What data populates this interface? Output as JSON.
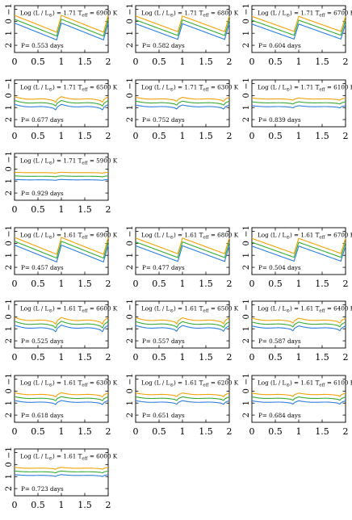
{
  "figure": {
    "color_orange": "#f0a30a",
    "color_green": "#3aa935",
    "color_blue": "#2f7fd8",
    "x_tick_labels": [
      "0",
      "0.5",
      "1",
      "1.5",
      "2"
    ],
    "y_tick_labels": [
      "−1",
      "0",
      "1",
      "2"
    ]
  },
  "chart_data": [
    {
      "type": "line",
      "label": "Log (L / L⊙) = 1.71 Teff = 6900 K",
      "period": "P= 0.553 days",
      "xlim": [
        0,
        2
      ],
      "ylim": [
        2.6,
        -1.3
      ],
      "shape": "saw",
      "amplitude": 1.4,
      "spread": 0.32
    },
    {
      "type": "line",
      "label": "Log (L / L⊙) = 1.71 Teff = 6800 K",
      "period": "P= 0.582 days",
      "xlim": [
        0,
        2
      ],
      "ylim": [
        2.6,
        -1.3
      ],
      "shape": "saw",
      "amplitude": 1.3,
      "spread": 0.32
    },
    {
      "type": "line",
      "label": "Log (L / L⊙) = 1.71 Teff = 6700 K",
      "period": "P= 0.604 days",
      "xlim": [
        0,
        2
      ],
      "ylim": [
        2.6,
        -1.3
      ],
      "shape": "saw",
      "amplitude": 1.25,
      "spread": 0.32
    },
    {
      "type": "line",
      "label": "Log (L / L⊙) = 1.71 Teff = 6500 K",
      "period": "P= 0.677 days",
      "xlim": [
        0,
        2
      ],
      "ylim": [
        2.6,
        -1.3
      ],
      "shape": "bump",
      "amplitude": 0.75,
      "spread": 0.32
    },
    {
      "type": "line",
      "label": "Log (L / L⊙) = 1.71 Teff = 6300 K",
      "period": "P= 0.752 days",
      "xlim": [
        0,
        2
      ],
      "ylim": [
        2.6,
        -1.3
      ],
      "shape": "bump",
      "amplitude": 0.55,
      "spread": 0.32
    },
    {
      "type": "line",
      "label": "Log (L / L⊙) = 1.71 Teff = 6100 K",
      "period": "P= 0.839 days",
      "xlim": [
        0,
        2
      ],
      "ylim": [
        2.6,
        -1.3
      ],
      "shape": "bump",
      "amplitude": 0.3,
      "spread": 0.32
    },
    {
      "type": "line",
      "label": "Log (L / L⊙) = 1.71 Teff = 5900 K",
      "period": "P= 0.929 days",
      "xlim": [
        0,
        2
      ],
      "ylim": [
        2.6,
        -1.3
      ],
      "shape": "bump",
      "amplitude": 0.12,
      "spread": 0.3
    },
    {
      "type": "line",
      "label": "Log (L / L⊙) = 1.61 Teff = 6900 K",
      "period": "P= 0.457 days",
      "xlim": [
        0,
        2
      ],
      "ylim": [
        2.6,
        -1.3
      ],
      "shape": "saw",
      "amplitude": 1.4,
      "spread": 0.32
    },
    {
      "type": "line",
      "label": "Log (L / L⊙) = 1.61 Teff = 6800 K",
      "period": "P= 0.477 days",
      "xlim": [
        0,
        2
      ],
      "ylim": [
        2.6,
        -1.3
      ],
      "shape": "saw",
      "amplitude": 1.3,
      "spread": 0.32
    },
    {
      "type": "line",
      "label": "Log (L / L⊙) = 1.61 Teff = 6700 K",
      "period": "P= 0.504 days",
      "xlim": [
        0,
        2
      ],
      "ylim": [
        2.6,
        -1.3
      ],
      "shape": "saw",
      "amplitude": 1.25,
      "spread": 0.32
    },
    {
      "type": "line",
      "label": "Log (L / L⊙) = 1.61 Teff = 6600 K",
      "period": "P= 0.525 days",
      "xlim": [
        0,
        2
      ],
      "ylim": [
        2.6,
        -1.3
      ],
      "shape": "bump",
      "amplitude": 0.9,
      "spread": 0.32
    },
    {
      "type": "line",
      "label": "Log (L / L⊙) = 1.61 Teff = 6500 K",
      "period": "P= 0.557 days",
      "xlim": [
        0,
        2
      ],
      "ylim": [
        2.6,
        -1.3
      ],
      "shape": "bump",
      "amplitude": 0.8,
      "spread": 0.32
    },
    {
      "type": "line",
      "label": "Log (L / L⊙) = 1.61 Teff = 6400 K",
      "period": "P= 0.587 days",
      "xlim": [
        0,
        2
      ],
      "ylim": [
        2.6,
        -1.3
      ],
      "shape": "bump",
      "amplitude": 0.65,
      "spread": 0.32
    },
    {
      "type": "line",
      "label": "Log (L / L⊙) = 1.61 Teff = 6300 K",
      "period": "P= 0.618 days",
      "xlim": [
        0,
        2
      ],
      "ylim": [
        2.6,
        -1.3
      ],
      "shape": "bump",
      "amplitude": 0.55,
      "spread": 0.32
    },
    {
      "type": "line",
      "label": "Log (L / L⊙) = 1.61 Teff = 6200 K",
      "period": "P= 0.651 days",
      "xlim": [
        0,
        2
      ],
      "ylim": [
        2.6,
        -1.3
      ],
      "shape": "bump",
      "amplitude": 0.5,
      "spread": 0.32
    },
    {
      "type": "line",
      "label": "Log (L / L⊙) = 1.61 Teff = 6100 K",
      "period": "P= 0.684 days",
      "xlim": [
        0,
        2
      ],
      "ylim": [
        2.6,
        -1.3
      ],
      "shape": "bump",
      "amplitude": 0.45,
      "spread": 0.32
    },
    {
      "type": "line",
      "label": "Log (L / L⊙) = 1.61 Teff = 6000 K",
      "period": "P= 0.723 days",
      "xlim": [
        0,
        2
      ],
      "ylim": [
        2.6,
        -1.3
      ],
      "shape": "bump",
      "amplitude": 0.25,
      "spread": 0.3
    }
  ]
}
